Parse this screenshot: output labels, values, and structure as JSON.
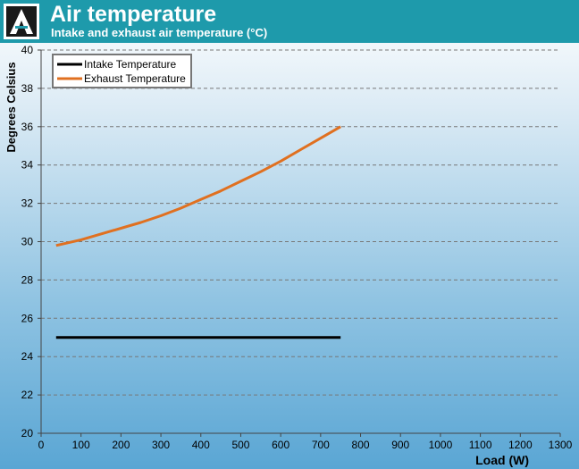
{
  "header": {
    "title": "Air temperature",
    "subtitle": "Intake and exhaust air temperature (°C)",
    "logo_letter": "A"
  },
  "chart_data": {
    "type": "line",
    "xlabel": "Load (W)",
    "ylabel": "Degrees Celsius",
    "xlim": [
      0,
      1300
    ],
    "ylim": [
      20,
      40
    ],
    "xticks": [
      0,
      100,
      200,
      300,
      400,
      500,
      600,
      700,
      800,
      900,
      1000,
      1100,
      1200,
      1300
    ],
    "yticks": [
      20,
      22,
      24,
      26,
      28,
      30,
      32,
      34,
      36,
      38,
      40
    ],
    "grid": "horizontal-dashed",
    "legend_position": "top-left",
    "series": [
      {
        "name": "Intake Temperature",
        "color": "#000000",
        "x": [
          37.5,
          150,
          300,
          450,
          600,
          750
        ],
        "y": [
          25,
          25,
          25,
          25,
          25,
          25
        ]
      },
      {
        "name": "Exhaust Temperature",
        "color": "#e07020",
        "x": [
          37.5,
          100,
          150,
          200,
          250,
          300,
          350,
          400,
          450,
          500,
          550,
          600,
          650,
          700,
          750
        ],
        "y": [
          29.8,
          30.1,
          30.4,
          30.7,
          31.0,
          31.35,
          31.75,
          32.2,
          32.65,
          33.15,
          33.65,
          34.2,
          34.8,
          35.4,
          36.0
        ]
      }
    ]
  }
}
